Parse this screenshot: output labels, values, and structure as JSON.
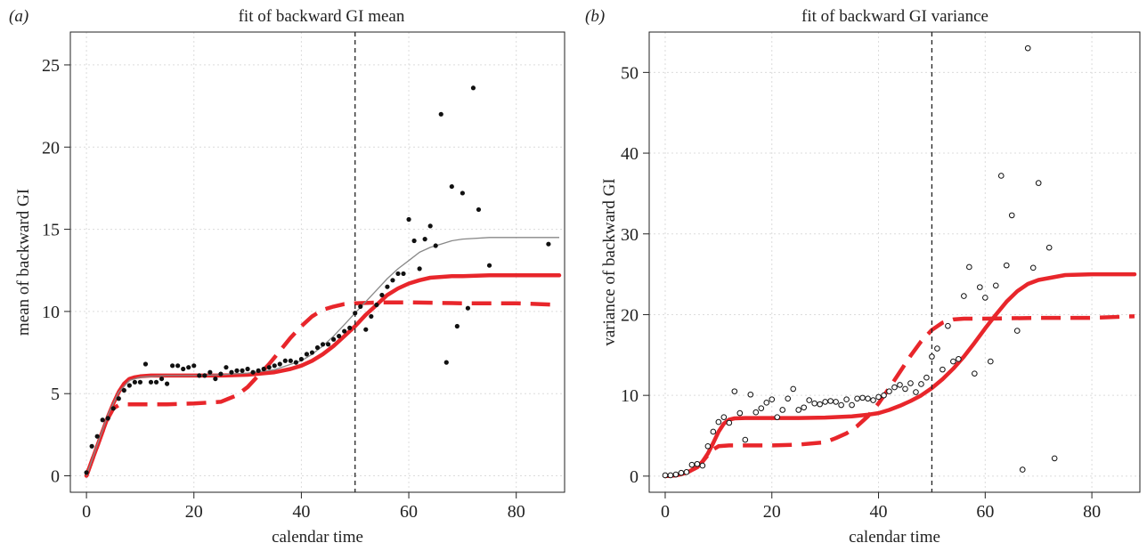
{
  "chart_data": [
    {
      "type": "scatter",
      "panel_tag": "(a)",
      "title": "fit of backward GI mean",
      "xlabel": "calendar time",
      "ylabel": "mean of backward GI",
      "xlim": [
        -3,
        89
      ],
      "ylim": [
        -1,
        27
      ],
      "xticks": [
        0,
        20,
        40,
        60,
        80
      ],
      "yticks": [
        0,
        5,
        10,
        15,
        20,
        25
      ],
      "grid": true,
      "point_style": "filled",
      "vline_x": 50,
      "points": {
        "x": [
          0,
          1,
          2,
          3,
          4,
          5,
          6,
          7,
          8,
          9,
          10,
          11,
          12,
          13,
          14,
          15,
          16,
          17,
          18,
          19,
          20,
          21,
          22,
          23,
          24,
          25,
          26,
          27,
          28,
          29,
          30,
          31,
          32,
          33,
          34,
          35,
          36,
          37,
          38,
          39,
          40,
          41,
          42,
          43,
          44,
          45,
          46,
          47,
          48,
          49,
          50,
          51,
          52,
          53,
          54,
          55,
          56,
          57,
          58,
          59,
          60,
          61,
          62,
          63,
          64,
          65,
          66,
          67,
          68,
          69,
          70,
          71,
          72,
          73,
          75,
          86
        ],
        "y": [
          0.2,
          1.8,
          2.4,
          3.4,
          3.5,
          4.1,
          4.7,
          5.2,
          5.5,
          5.7,
          5.7,
          6.8,
          5.7,
          5.7,
          5.9,
          5.6,
          6.7,
          6.7,
          6.5,
          6.6,
          6.7,
          6.1,
          6.1,
          6.3,
          5.9,
          6.2,
          6.6,
          6.3,
          6.4,
          6.4,
          6.5,
          6.3,
          6.4,
          6.5,
          6.6,
          6.7,
          6.8,
          7.0,
          7.0,
          6.9,
          7.1,
          7.4,
          7.5,
          7.8,
          8.0,
          8.0,
          8.3,
          8.5,
          8.8,
          9.0,
          9.9,
          10.3,
          8.9,
          9.7,
          10.4,
          11.0,
          11.5,
          11.9,
          12.3,
          12.3,
          15.6,
          14.3,
          12.6,
          14.4,
          15.2,
          14.0,
          22.0,
          6.9,
          17.6,
          9.1,
          17.2,
          10.2,
          23.6,
          16.2,
          12.8,
          14.1
        ]
      },
      "series": [
        {
          "name": "",
          "style": "solid-thick",
          "color": "#e8262b",
          "x": [
            0,
            1,
            2,
            3,
            4,
            5,
            6,
            7,
            8,
            9,
            10,
            12,
            15,
            20,
            25,
            30,
            35,
            38,
            40,
            42,
            44,
            46,
            48,
            50,
            52,
            54,
            56,
            58,
            60,
            62,
            64,
            66,
            68,
            70,
            75,
            80,
            85,
            88
          ],
          "y": [
            0,
            0.9,
            1.8,
            2.7,
            3.6,
            4.4,
            5.1,
            5.6,
            5.9,
            6.0,
            6.05,
            6.1,
            6.1,
            6.1,
            6.1,
            6.15,
            6.3,
            6.5,
            6.7,
            7.0,
            7.4,
            7.9,
            8.5,
            9.1,
            9.8,
            10.4,
            11.0,
            11.4,
            11.7,
            11.9,
            12.05,
            12.1,
            12.15,
            12.15,
            12.2,
            12.2,
            12.2,
            12.2
          ]
        },
        {
          "name": "",
          "style": "dashed-thick",
          "color": "#e8262b",
          "x": [
            0,
            1,
            2,
            3,
            4,
            5,
            6,
            7,
            8,
            9,
            10,
            15,
            20,
            25,
            28,
            30,
            32,
            34,
            36,
            38,
            40,
            42,
            44,
            46,
            48,
            50,
            55,
            60,
            70,
            80,
            88
          ],
          "y": [
            0,
            0.9,
            1.8,
            2.7,
            3.5,
            4.1,
            4.3,
            4.35,
            4.35,
            4.35,
            4.35,
            4.35,
            4.4,
            4.5,
            4.9,
            5.4,
            6.1,
            6.8,
            7.6,
            8.4,
            9.1,
            9.7,
            10.1,
            10.3,
            10.45,
            10.5,
            10.55,
            10.55,
            10.5,
            10.5,
            10.4
          ]
        },
        {
          "name": "",
          "style": "solid-thin",
          "color": "#888888",
          "x": [
            0,
            2,
            4,
            6,
            8,
            10,
            12,
            15,
            20,
            25,
            30,
            35,
            40,
            42,
            44,
            46,
            48,
            50,
            52,
            54,
            56,
            58,
            60,
            62,
            64,
            66,
            68,
            70,
            75,
            80,
            85,
            88
          ],
          "y": [
            0,
            1.9,
            3.7,
            5.1,
            5.8,
            6.0,
            6.05,
            6.1,
            6.1,
            6.15,
            6.25,
            6.45,
            7.0,
            7.4,
            7.9,
            8.5,
            9.2,
            9.9,
            10.6,
            11.3,
            12.0,
            12.6,
            13.1,
            13.6,
            13.9,
            14.1,
            14.3,
            14.4,
            14.5,
            14.5,
            14.5,
            14.5
          ]
        }
      ]
    },
    {
      "type": "scatter",
      "panel_tag": "(b)",
      "title": "fit of backward GI variance",
      "xlabel": "calendar time",
      "ylabel": "variance of backward GI",
      "xlim": [
        -3,
        89
      ],
      "ylim": [
        -2,
        55
      ],
      "xticks": [
        0,
        20,
        40,
        60,
        80
      ],
      "yticks": [
        0,
        10,
        20,
        30,
        40,
        50
      ],
      "grid": true,
      "point_style": "open",
      "vline_x": 50,
      "points": {
        "x": [
          0,
          1,
          2,
          3,
          4,
          5,
          6,
          7,
          8,
          9,
          10,
          11,
          12,
          13,
          14,
          15,
          16,
          17,
          18,
          19,
          20,
          21,
          22,
          23,
          24,
          25,
          26,
          27,
          28,
          29,
          30,
          31,
          32,
          33,
          34,
          35,
          36,
          37,
          38,
          39,
          40,
          41,
          42,
          43,
          44,
          45,
          46,
          47,
          48,
          49,
          50,
          51,
          52,
          53,
          54,
          55,
          56,
          57,
          58,
          59,
          60,
          61,
          62,
          63,
          64,
          65,
          66,
          67,
          68,
          69,
          70,
          72,
          73
        ],
        "y": [
          0.1,
          0.1,
          0.2,
          0.4,
          0.5,
          1.4,
          1.5,
          1.3,
          3.7,
          5.5,
          6.7,
          7.3,
          6.6,
          10.5,
          7.8,
          4.5,
          10.1,
          7.9,
          8.4,
          9.1,
          9.5,
          7.3,
          8.2,
          9.6,
          10.8,
          8.2,
          8.5,
          9.4,
          9.0,
          8.9,
          9.2,
          9.3,
          9.2,
          8.8,
          9.5,
          8.8,
          9.6,
          9.7,
          9.6,
          9.4,
          9.8,
          10.0,
          10.5,
          11.0,
          11.3,
          10.8,
          11.5,
          10.4,
          11.4,
          12.2,
          14.8,
          15.8,
          13.2,
          18.6,
          14.2,
          14.5,
          22.3,
          25.9,
          12.7,
          23.4,
          22.1,
          14.2,
          23.6,
          37.2,
          26.1,
          32.3,
          18.0,
          0.8,
          53.0,
          25.8,
          36.3,
          28.3,
          2.2
        ]
      },
      "series": [
        {
          "name": "",
          "style": "solid-thick",
          "color": "#e8262b",
          "x": [
            0,
            2,
            4,
            6,
            7,
            8,
            9,
            10,
            11,
            12,
            13,
            15,
            20,
            25,
            30,
            35,
            38,
            40,
            42,
            44,
            46,
            48,
            50,
            52,
            54,
            56,
            58,
            60,
            62,
            64,
            66,
            68,
            70,
            75,
            80,
            85,
            88
          ],
          "y": [
            0,
            0.1,
            0.4,
            1.1,
            1.8,
            2.8,
            4.1,
            5.5,
            6.5,
            7.0,
            7.15,
            7.2,
            7.2,
            7.2,
            7.25,
            7.4,
            7.6,
            7.8,
            8.2,
            8.7,
            9.3,
            10.0,
            10.9,
            12.0,
            13.3,
            14.8,
            16.5,
            18.3,
            20.0,
            21.6,
            22.9,
            23.8,
            24.3,
            24.9,
            25.0,
            25.0,
            25.0
          ]
        },
        {
          "name": "",
          "style": "dashed-thick",
          "color": "#e8262b",
          "x": [
            0,
            2,
            4,
            6,
            7,
            8,
            9,
            10,
            12,
            15,
            20,
            25,
            30,
            32,
            34,
            36,
            38,
            40,
            42,
            44,
            46,
            48,
            50,
            52,
            54,
            56,
            60,
            70,
            80,
            88
          ],
          "y": [
            0,
            0.1,
            0.4,
            1.1,
            1.8,
            2.6,
            3.3,
            3.7,
            3.8,
            3.8,
            3.8,
            3.9,
            4.2,
            4.7,
            5.3,
            6.2,
            7.4,
            9.0,
            10.9,
            12.9,
            14.9,
            16.7,
            18.1,
            19.0,
            19.4,
            19.5,
            19.5,
            19.6,
            19.6,
            19.8
          ]
        }
      ]
    }
  ]
}
